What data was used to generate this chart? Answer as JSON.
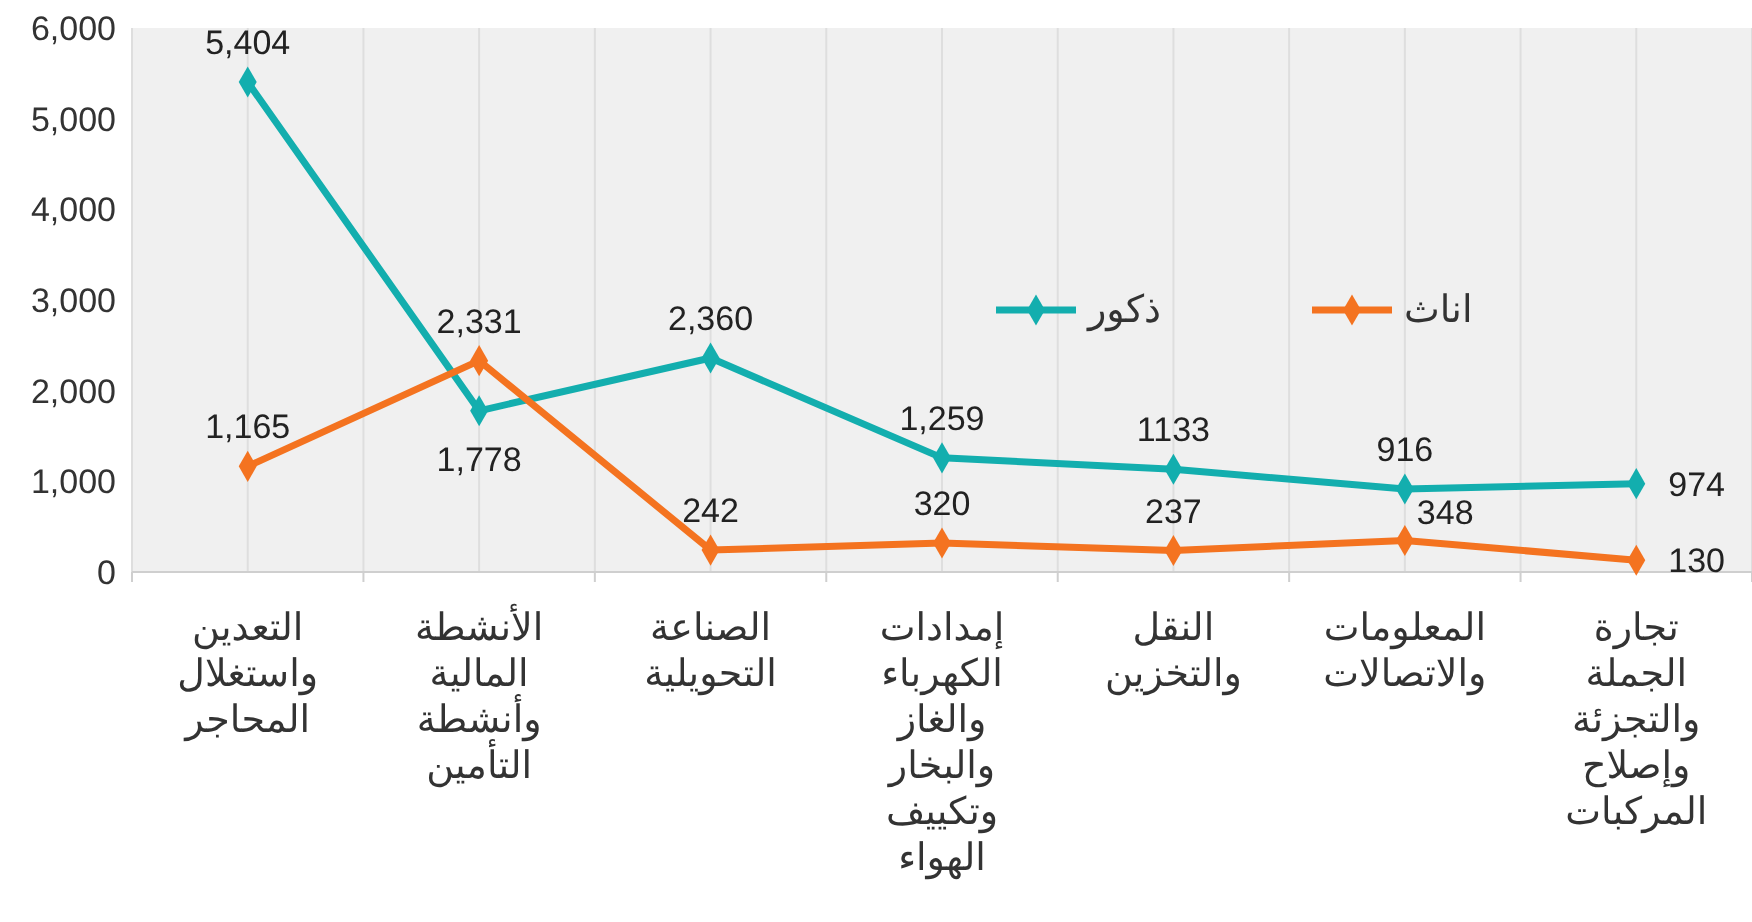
{
  "chart_data": {
    "type": "line",
    "categories": [
      "التعدين واستغلال المحاجر",
      "الأنشطة المالية وأنشطة التأمين",
      "الصناعة التحويلية",
      "إمدادات الكهرباء والغاز والبخار وتكييف الهواء",
      "النقل والتخزين",
      "المعلومات والاتصالات",
      "تجارة الجملة والتجزئة وإصلاح المركبات"
    ],
    "series": [
      {
        "name": "ذكور",
        "color": "#13aeae",
        "values": [
          5404,
          1778,
          2360,
          1259,
          1133,
          916,
          974
        ],
        "value_labels": [
          "5,404",
          "1,778",
          "2,360",
          "1,259",
          "1133",
          "916",
          "974"
        ]
      },
      {
        "name": "اناث",
        "color": "#f47320",
        "values": [
          1165,
          2331,
          242,
          320,
          237,
          348,
          130
        ],
        "value_labels": [
          "1,165",
          "2,331",
          "242",
          "320",
          "237",
          "348",
          "130"
        ]
      }
    ],
    "ylim": [
      0,
      6000
    ],
    "yticks": [
      {
        "value": 0,
        "label": "0"
      },
      {
        "value": 1000,
        "label": "1,000"
      },
      {
        "value": 2000,
        "label": "2,000"
      },
      {
        "value": 3000,
        "label": "3,000"
      },
      {
        "value": 4000,
        "label": "4,000"
      },
      {
        "value": 5000,
        "label": "5,000"
      },
      {
        "value": 6000,
        "label": "6,000"
      }
    ],
    "grid": "x",
    "legend": "right",
    "marker": "diamond",
    "line_style": "solid"
  }
}
